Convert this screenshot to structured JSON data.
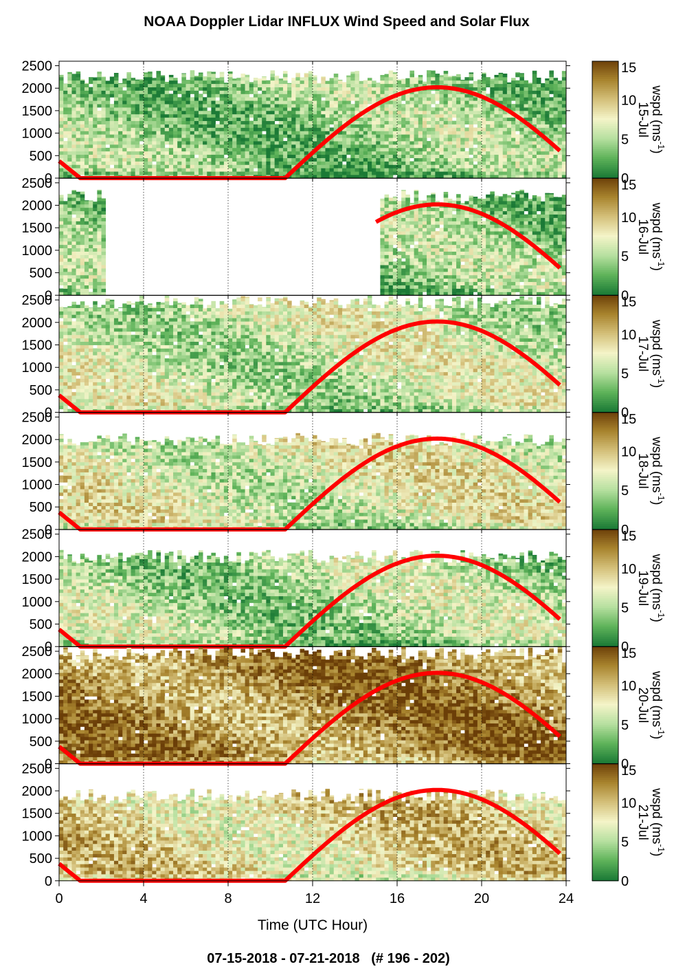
{
  "chart_data": {
    "type": "heatmap",
    "title": "NOAA Doppler Lidar INFLUX Wind Speed and Solar Flux",
    "footer": "07-15-2018 - 07-21-2018   (# 196 - 202)",
    "xlabel": "Time (UTC Hour)",
    "x_ticks": [
      "0",
      "4",
      "8",
      "12",
      "16",
      "20",
      "24"
    ],
    "xlim": [
      0,
      24
    ],
    "y_ticks": [
      "0",
      "500",
      "1000",
      "1500",
      "2000",
      "2500"
    ],
    "ylim": [
      0,
      2600
    ],
    "colorbar": {
      "label": "wspd (ms",
      "label_sup": "-1",
      "label_close": ")",
      "ticks": [
        "0",
        "5",
        "10",
        "15"
      ],
      "range": [
        0,
        15
      ],
      "colors": [
        "#1b7a36",
        "#5fb35a",
        "#b7e0a0",
        "#f4f4c8",
        "#d4c07a",
        "#a8842e",
        "#6b3e08"
      ]
    },
    "solar_flux_color": "#ff0000",
    "solar_flux_curve": {
      "sunrise_hour": 10.7,
      "sunset_hour": 1.0,
      "peak_hour": 17.9,
      "peak_height": 2020,
      "value_at_0h": 380,
      "value_at_end": 560
    },
    "days": [
      {
        "label": "15-Jul",
        "data_start": 0.0,
        "data_end": 23.8,
        "top": 2250,
        "mean": 4
      },
      {
        "label": "16-Jul",
        "gaps": [
          [
            2.0,
            15.0
          ]
        ],
        "data_start": 0.0,
        "data_end": 23.8,
        "top": 2200,
        "mean": 4,
        "flux_start": 15.0
      },
      {
        "label": "17-Jul",
        "data_start": 0.0,
        "data_end": 23.8,
        "top": 2450,
        "mean": 6
      },
      {
        "label": "18-Jul",
        "data_start": 0.0,
        "data_end": 23.8,
        "top": 2000,
        "mean": 7
      },
      {
        "label": "19-Jul",
        "data_start": 0.0,
        "data_end": 23.8,
        "top": 2000,
        "mean": 5
      },
      {
        "label": "20-Jul",
        "data_start": 0.0,
        "data_end": 23.8,
        "top": 2450,
        "mean": 12
      },
      {
        "label": "21-Jul",
        "data_start": 0.0,
        "data_end": 23.8,
        "top": 1900,
        "mean": 9
      }
    ]
  }
}
